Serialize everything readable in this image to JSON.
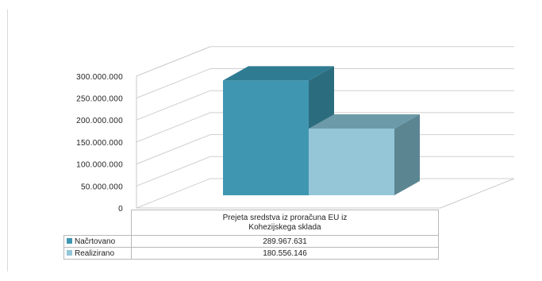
{
  "chart_data": {
    "type": "bar",
    "three_d": true,
    "categories": [
      "Prejeta sredstva iz proračuna EU iz Kohezijskega sklada"
    ],
    "series": [
      {
        "name": "Načrtovano",
        "values": [
          289967631
        ],
        "label": "289.967.631",
        "color": "#3f96b0"
      },
      {
        "name": "Realizirano",
        "values": [
          180556146
        ],
        "label": "180.556.146",
        "color": "#94c6d8"
      }
    ],
    "y_ticks": [
      "0",
      "50.000.000",
      "100.000.000",
      "150.000.000",
      "200.000.000",
      "250.000.000",
      "300.000.000"
    ],
    "y_tick_values": [
      0,
      50000000,
      100000000,
      150000000,
      200000000,
      250000000,
      300000000
    ],
    "ylim": [
      0,
      300000000
    ],
    "grid": true,
    "legend": "data-table-below",
    "title": "",
    "xlabel": "",
    "ylabel": ""
  },
  "table": {
    "category_line1": "Prejeta sredstva iz proračuna EU iz",
    "category_line2": "Kohezijskega sklada"
  }
}
